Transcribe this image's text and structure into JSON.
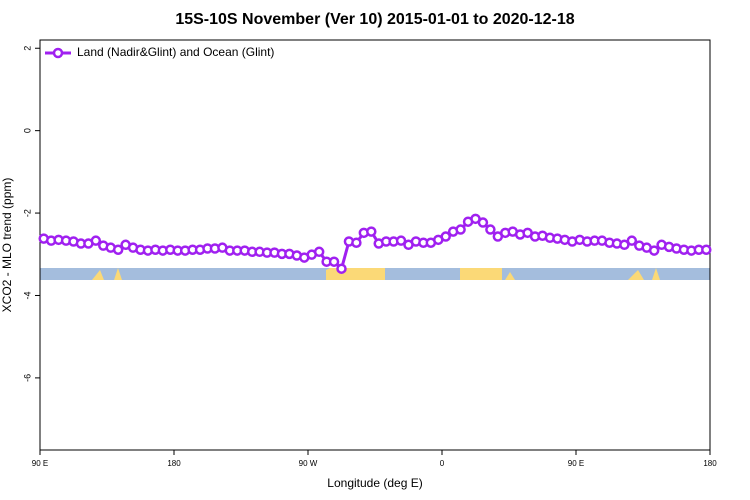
{
  "chart_data": {
    "type": "line",
    "title": "15S-10S November (Ver 10)   2015-01-01 to 2020-12-18",
    "xlabel": "Longitude (deg E)",
    "ylabel": "XCO2 - MLO trend (ppm)",
    "xlim": [
      90,
      540
    ],
    "ylim": [
      -7.75,
      2.2
    ],
    "xticks": [
      {
        "value": 90,
        "label": "90 E"
      },
      180,
      {
        "value": 270,
        "label": "90 W"
      },
      {
        "value": 360,
        "label": "0"
      },
      {
        "value": 450,
        "label": "90 E"
      },
      {
        "value": 540,
        "label": "180"
      }
    ],
    "yticks": [
      2,
      0,
      -2,
      -4,
      -6
    ],
    "legend": "top-left",
    "x": [
      92.5,
      97.5,
      102.5,
      107.5,
      112.5,
      117.5,
      122.5,
      127.5,
      132.5,
      137.5,
      142.5,
      147.5,
      152.5,
      157.5,
      162.5,
      167.5,
      172.5,
      177.5,
      182.5,
      187.5,
      192.5,
      197.5,
      202.5,
      207.5,
      212.5,
      217.5,
      222.5,
      227.5,
      232.5,
      237.5,
      242.5,
      247.5,
      252.5,
      257.5,
      262.5,
      267.5,
      272.5,
      277.5,
      282.5,
      287.5,
      292.5,
      297.5,
      302.5,
      307.5,
      312.5,
      317.5,
      322.5,
      327.5,
      332.5,
      337.5,
      342.5,
      347.5,
      352.5,
      357.5,
      362.5,
      367.5,
      372.5,
      377.5,
      382.5,
      387.5,
      392.5,
      397.5,
      402.5,
      407.5,
      412.5,
      417.5,
      422.5,
      427.5,
      432.5,
      437.5,
      442.5,
      447.5,
      452.5,
      457.5,
      462.5,
      467.5,
      472.5,
      477.5,
      482.5,
      487.5,
      492.5,
      497.5,
      502.5,
      507.5,
      512.5,
      517.5,
      522.5,
      527.5,
      532.5,
      537.5
    ],
    "series": [
      {
        "name": "Land (Nadir&Glint) and Ocean (Glint)",
        "color": "#a020f0",
        "values": [
          -2.62,
          -2.67,
          -2.65,
          -2.67,
          -2.69,
          -2.74,
          -2.74,
          -2.67,
          -2.79,
          -2.84,
          -2.89,
          -2.77,
          -2.84,
          -2.89,
          -2.91,
          -2.89,
          -2.91,
          -2.89,
          -2.91,
          -2.91,
          -2.89,
          -2.89,
          -2.86,
          -2.86,
          -2.84,
          -2.91,
          -2.91,
          -2.91,
          -2.94,
          -2.94,
          -2.96,
          -2.96,
          -2.99,
          -2.99,
          -3.03,
          -3.08,
          -3.01,
          -2.94,
          -3.18,
          -3.18,
          -3.35,
          -2.69,
          -2.72,
          -2.48,
          -2.45,
          -2.74,
          -2.69,
          -2.69,
          -2.67,
          -2.77,
          -2.69,
          -2.72,
          -2.72,
          -2.65,
          -2.57,
          -2.45,
          -2.4,
          -2.21,
          -2.14,
          -2.23,
          -2.4,
          -2.57,
          -2.48,
          -2.45,
          -2.52,
          -2.48,
          -2.57,
          -2.55,
          -2.6,
          -2.62,
          -2.65,
          -2.69,
          -2.65,
          -2.69,
          -2.67,
          -2.67,
          -2.72,
          -2.74,
          -2.77,
          -2.67,
          -2.79,
          -2.84,
          -2.91,
          -2.77,
          -2.82,
          -2.86,
          -2.89,
          -2.91,
          -2.89,
          -2.89
        ]
      }
    ]
  }
}
